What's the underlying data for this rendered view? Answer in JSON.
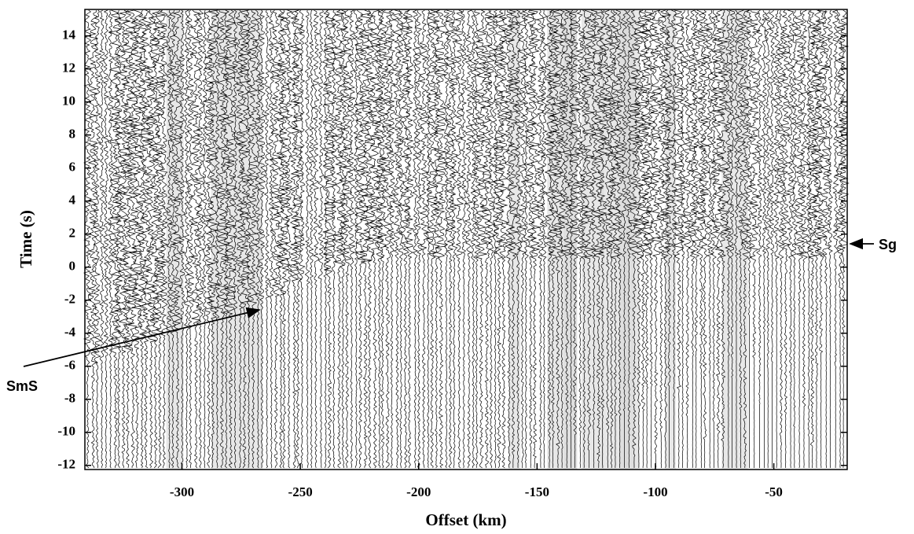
{
  "chart_data": {
    "type": "seismic-section",
    "x_label": "Offset (km)",
    "y_label": "Time (s)",
    "xlim": [
      -341,
      -19
    ],
    "ylim": [
      -12.25,
      15.6
    ],
    "xticks": [
      -300,
      -250,
      -200,
      -150,
      -100,
      -50
    ],
    "yticks": [
      -12,
      -10,
      -8,
      -6,
      -4,
      -2,
      0,
      2,
      4,
      6,
      8,
      10,
      12,
      14
    ],
    "annotations": [
      "SmS",
      "Sg"
    ]
  }
}
